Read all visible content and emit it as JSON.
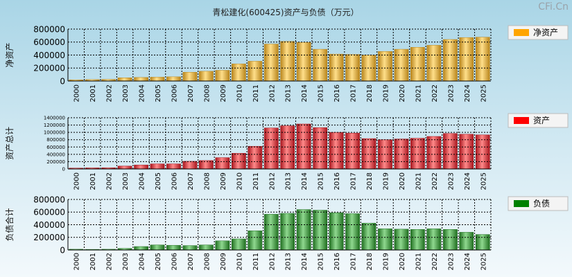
{
  "title": "青松建化(600425)资产与负债（万元）",
  "watermark": "CFi.Cn",
  "chart_data": [
    {
      "type": "bar",
      "name": "net-assets",
      "ylabel": "净资产",
      "legend": "净资产",
      "legend_color": "#ffa500",
      "bar_dark": "#b8841a",
      "bar_light": "#ffdf8a",
      "ylim": [
        0,
        800000
      ],
      "yticks": [
        0,
        200000,
        400000,
        600000,
        800000
      ],
      "yticklabels": [
        "0",
        "200000",
        "400000",
        "600000",
        "800000"
      ],
      "categories": [
        "2000",
        "2001",
        "2002",
        "2003",
        "2004",
        "2005",
        "2006",
        "2007",
        "2008",
        "2009",
        "2010",
        "2011",
        "2012",
        "2013",
        "2014",
        "2015",
        "2016",
        "2017",
        "2018",
        "2019",
        "2020",
        "2021",
        "2022",
        "2023",
        "2024",
        "2025"
      ],
      "values": [
        18000,
        22000,
        26000,
        50000,
        55000,
        60000,
        65000,
        135000,
        150000,
        165000,
        265000,
        305000,
        570000,
        610000,
        595000,
        490000,
        415000,
        410000,
        400000,
        455000,
        490000,
        520000,
        550000,
        640000,
        670000,
        675000
      ]
    },
    {
      "type": "bar",
      "name": "total-assets",
      "ylabel": "资产总计",
      "legend": "资产",
      "legend_color": "#ff0000",
      "bar_dark": "#a8141c",
      "bar_light": "#ff8a8a",
      "ylim": [
        0,
        1400000
      ],
      "yticks": [
        0,
        200000,
        400000,
        600000,
        800000,
        1000000,
        1200000,
        1400000
      ],
      "yticklabels": [
        "0",
        "200000",
        "400000",
        "600000",
        "800000",
        "1000000",
        "1200000",
        "1400000"
      ],
      "categories": [
        "2000",
        "2001",
        "2002",
        "2003",
        "2004",
        "2005",
        "2006",
        "2007",
        "2008",
        "2009",
        "2010",
        "2011",
        "2012",
        "2013",
        "2014",
        "2015",
        "2016",
        "2017",
        "2018",
        "2019",
        "2020",
        "2021",
        "2022",
        "2023",
        "2024",
        "2025"
      ],
      "values": [
        25000,
        30000,
        35000,
        80000,
        110000,
        140000,
        140000,
        210000,
        230000,
        310000,
        430000,
        620000,
        1120000,
        1180000,
        1230000,
        1130000,
        1000000,
        980000,
        830000,
        800000,
        820000,
        840000,
        890000,
        970000,
        950000,
        930000
      ]
    },
    {
      "type": "bar",
      "name": "total-liabilities",
      "ylabel": "负债合计",
      "legend": "负债",
      "legend_color": "#008000",
      "bar_dark": "#1f6e1f",
      "bar_light": "#8fd88f",
      "ylim": [
        0,
        800000
      ],
      "yticks": [
        0,
        200000,
        400000,
        600000,
        800000
      ],
      "yticklabels": [
        "0",
        "200000",
        "400000",
        "600000",
        "800000"
      ],
      "categories": [
        "2000",
        "2001",
        "2002",
        "2003",
        "2004",
        "2005",
        "2006",
        "2007",
        "2008",
        "2009",
        "2010",
        "2011",
        "2012",
        "2013",
        "2014",
        "2015",
        "2016",
        "2017",
        "2018",
        "2019",
        "2020",
        "2021",
        "2022",
        "2023",
        "2024",
        "2025"
      ],
      "values": [
        12000,
        10000,
        12000,
        25000,
        55000,
        80000,
        75000,
        70000,
        80000,
        145000,
        175000,
        305000,
        565000,
        580000,
        640000,
        630000,
        590000,
        575000,
        425000,
        335000,
        330000,
        325000,
        335000,
        325000,
        280000,
        245000
      ]
    }
  ]
}
